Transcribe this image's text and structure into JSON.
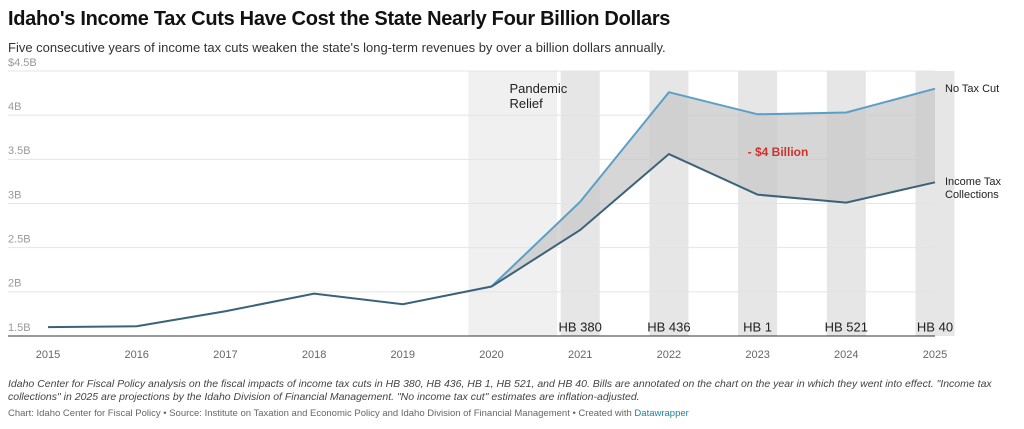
{
  "chart_data": {
    "type": "line",
    "title": "Idaho's Income Tax Cuts Have Cost the State Nearly Four Billion Dollars",
    "subtitle": "Five consecutive years of income tax cuts weaken the state's long-term revenues by over a billion dollars annually.",
    "x": [
      2015,
      2016,
      2017,
      2018,
      2019,
      2020,
      2021,
      2022,
      2023,
      2024,
      2025
    ],
    "series": [
      {
        "name": "No Tax Cut",
        "color": "#5b9fc8",
        "values": [
          null,
          null,
          null,
          null,
          null,
          2.06,
          3.02,
          4.26,
          4.01,
          4.03,
          4.3
        ]
      },
      {
        "name": "Income Tax Collections",
        "color": "#3a6278",
        "values": [
          1.6,
          1.61,
          1.78,
          1.98,
          1.86,
          2.06,
          2.7,
          3.56,
          3.1,
          3.01,
          3.24
        ]
      }
    ],
    "xlim": [
      2015,
      2025
    ],
    "xticks": [
      2015,
      2016,
      2017,
      2018,
      2019,
      2020,
      2021,
      2022,
      2023,
      2024,
      2025
    ],
    "ylim": [
      1.5,
      4.5
    ],
    "yticks": [
      {
        "value": 1.5,
        "label": "1.5B"
      },
      {
        "value": 2,
        "label": "2B"
      },
      {
        "value": 2.5,
        "label": "2.5B"
      },
      {
        "value": 3,
        "label": "3B"
      },
      {
        "value": 3.5,
        "label": "3.5B"
      },
      {
        "value": 4,
        "label": "4B"
      },
      {
        "value": 4.5,
        "label": "$4.5B"
      }
    ],
    "grid": true,
    "pandemic_relief": {
      "label": "Pandemic Relief",
      "from": 2020,
      "to": 2021
    },
    "bills": [
      {
        "x": 2021,
        "label": "HB 380"
      },
      {
        "x": 2022,
        "label": "HB 436"
      },
      {
        "x": 2023,
        "label": "HB 1"
      },
      {
        "x": 2024,
        "label": "HB 521"
      },
      {
        "x": 2025,
        "label": "HB 40"
      }
    ],
    "gap_annotation": {
      "label": "- $4 Billion",
      "color": "#d0312d"
    },
    "gap_fill": "#c8c8c8",
    "notes": "Idaho Center for Fiscal Policy analysis on the fiscal impacts of income tax cuts in HB 380, HB 436, HB 1, HB 521, and HB 40. Bills are annotated on the chart on the year in which they went into effect. \"Income tax collections\" in 2025 are projections by the Idaho Division of Financial Management. \"No income tax cut\" estimates are inflation-adjusted.",
    "source": "Chart: Idaho Center for Fiscal Policy • Source: Institute on Taxation and Economic Policy and Idaho Division of Financial Management • Created with",
    "credit": "Datawrapper"
  }
}
